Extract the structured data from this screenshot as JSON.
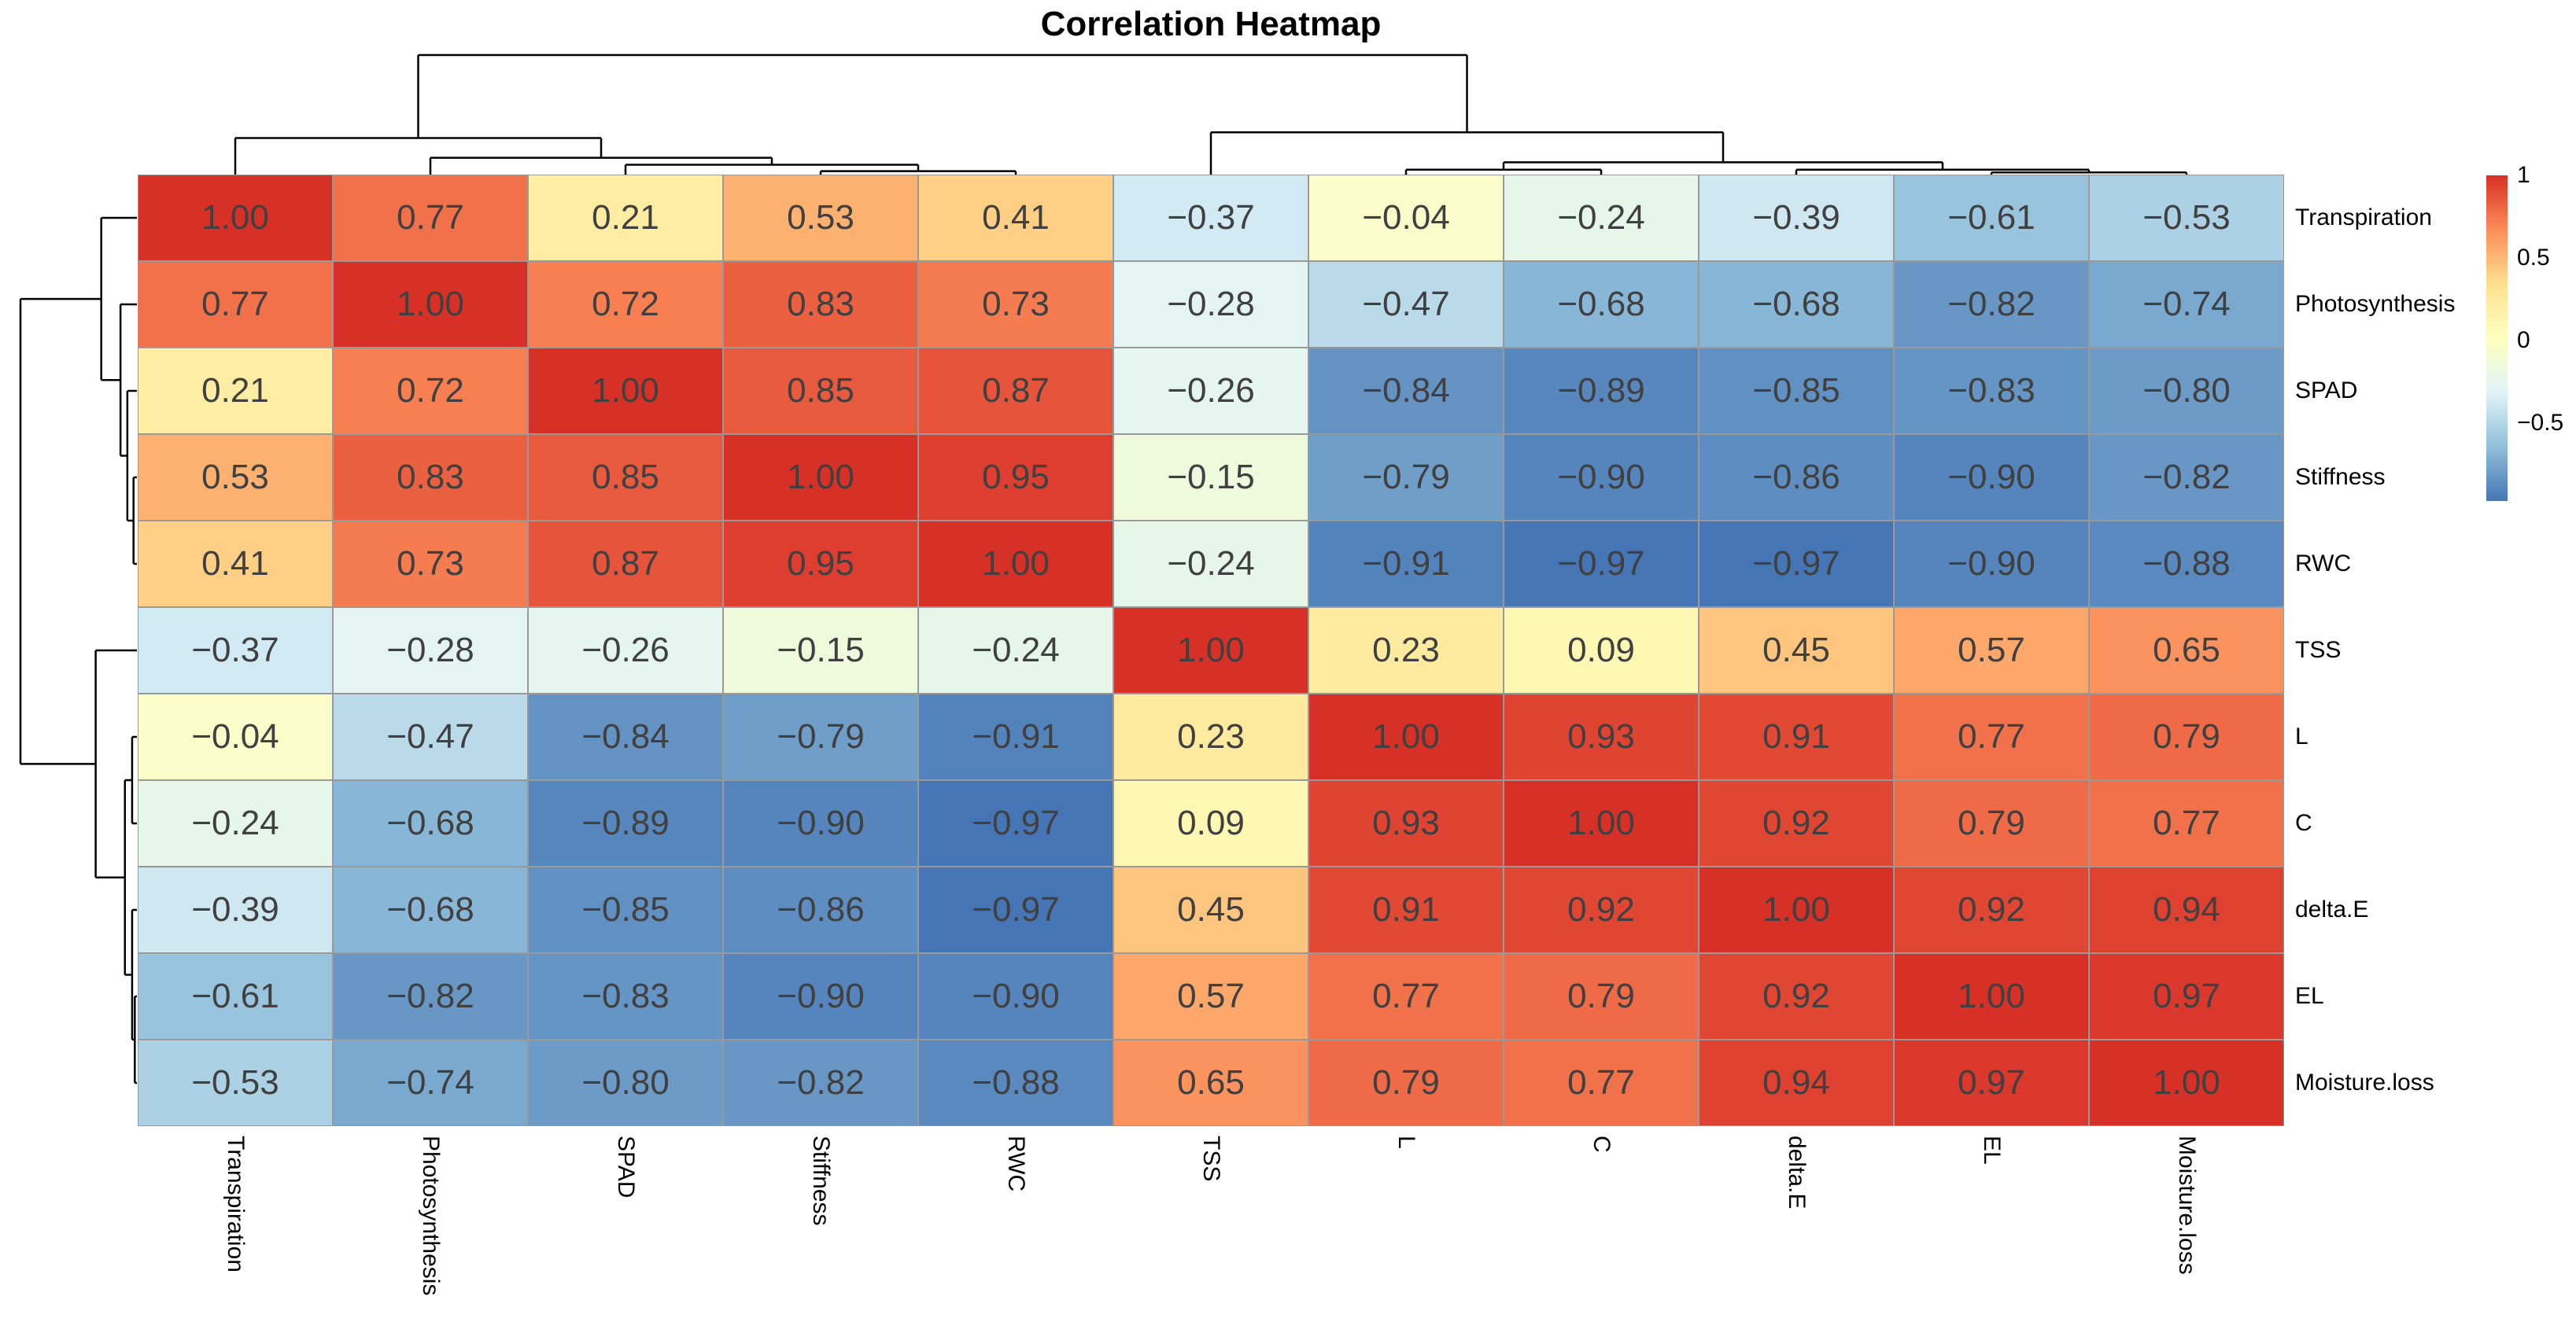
{
  "title": "Correlation Heatmap",
  "chart_data": {
    "type": "heatmap",
    "title": "Correlation Heatmap",
    "labels": [
      "Transpiration",
      "Photosynthesis",
      "SPAD",
      "Stiffness",
      "RWC",
      "TSS",
      "L",
      "C",
      "delta.E",
      "EL",
      "Moisture.loss"
    ],
    "row_labels": [
      "Transpiration",
      "Photosynthesis",
      "SPAD",
      "Stiffness",
      "RWC",
      "TSS",
      "L",
      "C",
      "delta.E",
      "EL",
      "Moisture.loss"
    ],
    "col_labels": [
      "Transpiration",
      "Photosynthesis",
      "SPAD",
      "Stiffness",
      "RWC",
      "TSS",
      "L",
      "C",
      "delta.E",
      "EL",
      "Moisture.loss"
    ],
    "matrix": [
      [
        1.0,
        0.77,
        0.21,
        0.53,
        0.41,
        -0.37,
        -0.04,
        -0.24,
        -0.39,
        -0.61,
        -0.53
      ],
      [
        0.77,
        1.0,
        0.72,
        0.83,
        0.73,
        -0.28,
        -0.47,
        -0.68,
        -0.68,
        -0.82,
        -0.74
      ],
      [
        0.21,
        0.72,
        1.0,
        0.85,
        0.87,
        -0.26,
        -0.84,
        -0.89,
        -0.85,
        -0.83,
        -0.8
      ],
      [
        0.53,
        0.83,
        0.85,
        1.0,
        0.95,
        -0.15,
        -0.79,
        -0.9,
        -0.86,
        -0.9,
        -0.82
      ],
      [
        0.41,
        0.73,
        0.87,
        0.95,
        1.0,
        -0.24,
        -0.91,
        -0.97,
        -0.97,
        -0.9,
        -0.88
      ],
      [
        -0.37,
        -0.28,
        -0.26,
        -0.15,
        -0.24,
        1.0,
        0.23,
        0.09,
        0.45,
        0.57,
        0.65
      ],
      [
        -0.04,
        -0.47,
        -0.84,
        -0.79,
        -0.91,
        0.23,
        1.0,
        0.93,
        0.91,
        0.77,
        0.79
      ],
      [
        -0.24,
        -0.68,
        -0.89,
        -0.9,
        -0.97,
        0.09,
        0.93,
        1.0,
        0.92,
        0.79,
        0.77
      ],
      [
        -0.39,
        -0.68,
        -0.85,
        -0.86,
        -0.97,
        0.45,
        0.91,
        0.92,
        1.0,
        0.92,
        0.94
      ],
      [
        -0.61,
        -0.82,
        -0.83,
        -0.9,
        -0.9,
        0.57,
        0.77,
        0.79,
        0.92,
        1.0,
        0.97
      ],
      [
        -0.53,
        -0.74,
        -0.8,
        -0.82,
        -0.88,
        0.65,
        0.79,
        0.77,
        0.94,
        0.97,
        1.0
      ]
    ],
    "value_format": "2dp",
    "color_scale": {
      "domain": [
        -0.97,
        1.0
      ],
      "palette": [
        "#4575B4",
        "#91BFDB",
        "#E0F3F8",
        "#FFFFBF",
        "#FEE090",
        "#FC8D59",
        "#D73027"
      ]
    },
    "legend": {
      "position": "right",
      "ticks": [
        {
          "value": 1,
          "label": "1"
        },
        {
          "value": 0.5,
          "label": "0.5"
        },
        {
          "value": 0,
          "label": "0"
        },
        {
          "value": -0.5,
          "label": "−0.5"
        }
      ]
    },
    "dendrogram": {
      "note": "same clustering tree for rows and columns; heights are fractions of root height",
      "tree": {
        "h": 1.0,
        "children": [
          {
            "h": 0.306,
            "children": [
              {
                "leaf": "Transpiration"
              },
              {
                "h": 0.141,
                "children": [
                  {
                    "leaf": "Photosynthesis"
                  },
                  {
                    "h": 0.082,
                    "children": [
                      {
                        "leaf": "SPAD"
                      },
                      {
                        "h": 0.029,
                        "children": [
                          {
                            "leaf": "Stiffness"
                          },
                          {
                            "leaf": "RWC"
                          }
                        ]
                      }
                    ]
                  }
                ]
              }
            ]
          },
          {
            "h": 0.354,
            "children": [
              {
                "leaf": "TSS"
              },
              {
                "h": 0.103,
                "children": [
                  {
                    "h": 0.041,
                    "children": [
                      {
                        "leaf": "L"
                      },
                      {
                        "leaf": "C"
                      }
                    ]
                  },
                  {
                    "h": 0.041,
                    "children": [
                      {
                        "leaf": "delta.E"
                      },
                      {
                        "h": 0.018,
                        "children": [
                          {
                            "leaf": "EL"
                          },
                          {
                            "leaf": "Moisture.loss"
                          }
                        ]
                      }
                    ]
                  }
                ]
              }
            ]
          }
        ]
      }
    },
    "styles": {
      "cell_border_color": "#999999",
      "cell_text_color": "#404040",
      "dendro_line_color": "#000000",
      "label_text_color": "#000000"
    }
  }
}
